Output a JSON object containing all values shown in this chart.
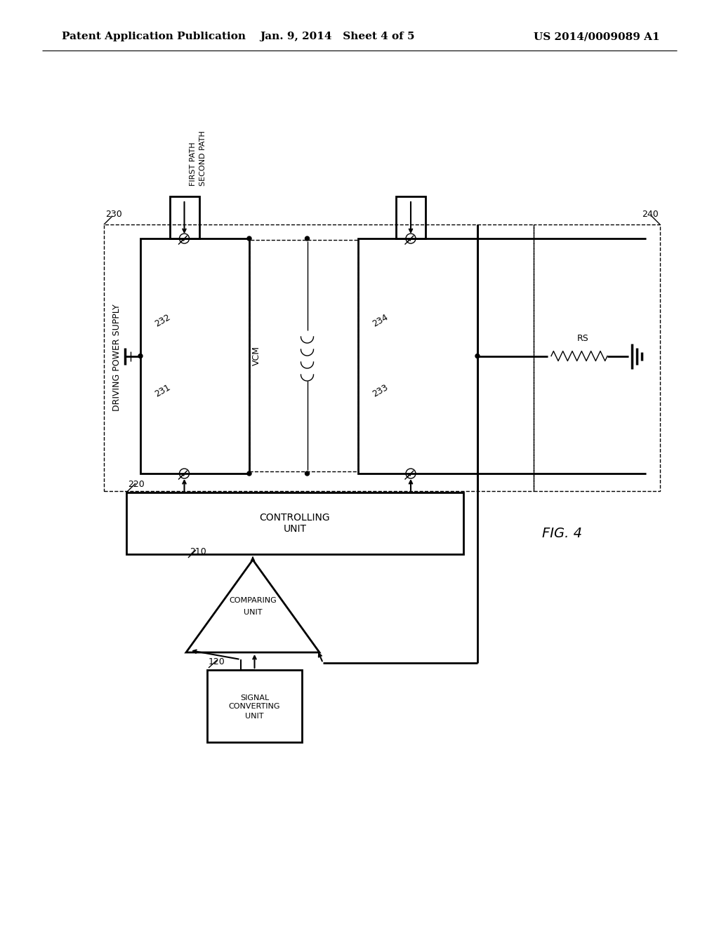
{
  "bg_color": "#ffffff",
  "line_color": "#000000",
  "header_left": "Patent Application Publication",
  "header_center": "Jan. 9, 2014   Sheet 4 of 5",
  "header_right": "US 2014/0009089 A1",
  "fig_label": "FIG. 4",
  "header_fontsize": 11,
  "body_fontsize": 9,
  "small_fontsize": 8,
  "label_fontsize": 10
}
